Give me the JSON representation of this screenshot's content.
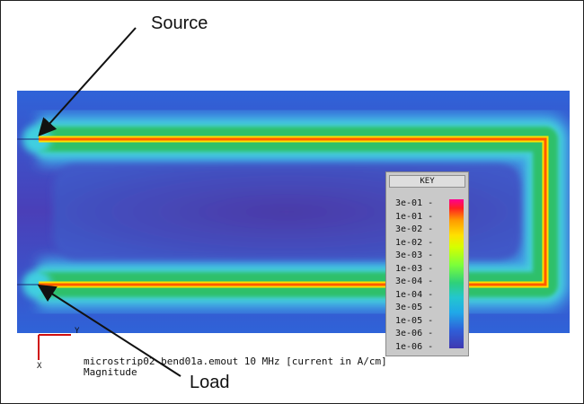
{
  "annotations": {
    "source_label": "Source",
    "load_label": "Load"
  },
  "plot": {
    "caption_line1": "microstrip02-bend01a.emout 10 MHz [current in A/cm]",
    "caption_line2": "Magnitude"
  },
  "axes": {
    "y_label": "Y",
    "x_label": "X"
  },
  "key": {
    "title": "KEY",
    "levels": [
      "3e-01",
      "1e-01",
      "3e-02",
      "1e-02",
      "3e-03",
      "1e-03",
      "3e-04",
      "1e-04",
      "3e-05",
      "1e-05",
      "3e-06",
      "1e-06"
    ]
  },
  "colors": {
    "background_field": "#2f5ed8",
    "trace": "#ff5a00"
  }
}
